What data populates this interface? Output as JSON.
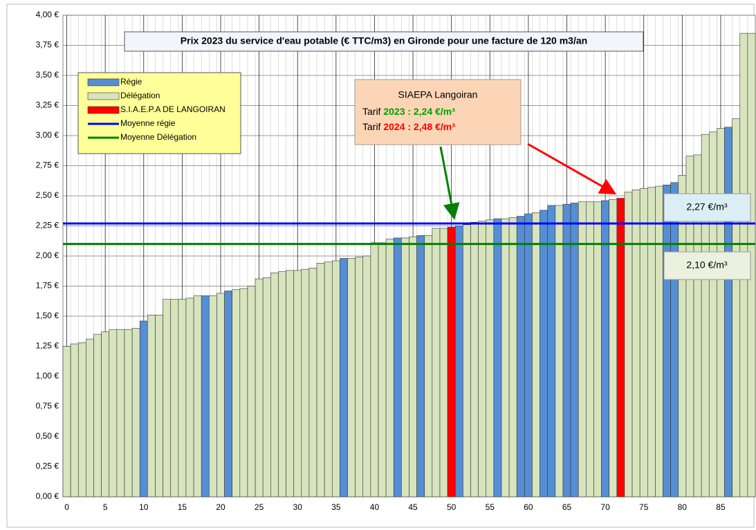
{
  "chart_data": {
    "type": "bar",
    "title": "Prix 2023 du service d'eau potable  (€ TTC/m3) en Gironde pour une facture de 120 m3/an",
    "values": [
      1.25,
      1.27,
      1.28,
      1.31,
      1.35,
      1.37,
      1.39,
      1.39,
      1.39,
      1.4,
      1.46,
      1.51,
      1.51,
      1.64,
      1.64,
      1.64,
      1.65,
      1.67,
      1.67,
      1.67,
      1.69,
      1.71,
      1.72,
      1.73,
      1.75,
      1.81,
      1.82,
      1.86,
      1.87,
      1.88,
      1.88,
      1.89,
      1.9,
      1.94,
      1.95,
      1.96,
      1.98,
      1.98,
      1.99,
      2.0,
      2.11,
      2.11,
      2.14,
      2.15,
      2.15,
      2.16,
      2.17,
      2.17,
      2.23,
      2.23,
      2.24,
      2.25,
      2.26,
      2.28,
      2.29,
      2.3,
      2.31,
      2.31,
      2.32,
      2.33,
      2.35,
      2.36,
      2.38,
      2.42,
      2.42,
      2.43,
      2.44,
      2.45,
      2.45,
      2.45,
      2.46,
      2.47,
      2.48,
      2.53,
      2.55,
      2.56,
      2.57,
      2.58,
      2.59,
      2.61,
      2.67,
      2.83,
      2.84,
      3.01,
      3.03,
      3.06,
      3.07,
      3.14,
      3.85,
      3.85
    ],
    "bar_group": [
      1,
      1,
      1,
      1,
      1,
      1,
      1,
      1,
      1,
      1,
      0,
      1,
      1,
      1,
      1,
      1,
      1,
      1,
      0,
      1,
      1,
      0,
      1,
      1,
      1,
      1,
      1,
      1,
      1,
      1,
      1,
      1,
      1,
      1,
      1,
      1,
      0,
      1,
      1,
      1,
      1,
      1,
      1,
      0,
      1,
      1,
      0,
      1,
      1,
      1,
      2,
      0,
      1,
      1,
      1,
      1,
      0,
      1,
      1,
      0,
      0,
      1,
      0,
      0,
      1,
      0,
      0,
      1,
      1,
      1,
      0,
      1,
      2,
      1,
      1,
      1,
      1,
      1,
      0,
      0,
      1,
      1,
      1,
      1,
      1,
      1,
      0,
      1,
      1,
      1
    ],
    "legend": [
      {
        "name": "Régie",
        "color": "#558ed5"
      },
      {
        "name": "Délégation",
        "color": "#d7e4bd"
      },
      {
        "name": "S.I.A.E.P.A DE LANGOIRAN",
        "color": "#ff0000"
      }
    ],
    "lines": [
      {
        "name": "Moyenne régie",
        "color": "#0000ff",
        "value": 2.27,
        "value_label": "2,27 €/m³"
      },
      {
        "name": "Moyenne Délégation",
        "color": "#008000",
        "value": 2.1,
        "value_label": "2,10 €/m³"
      }
    ],
    "annotation": {
      "title": "SIAEPA Langoiran",
      "prefix": "Tarif ",
      "lines": [
        {
          "text": "2023 : 2,24 €/m³",
          "color": "#00a000"
        },
        {
          "text": "2024 : 2,48 €/m³",
          "color": "#ff0000"
        }
      ]
    },
    "ylim": [
      0,
      4
    ],
    "yticks": [
      {
        "value": 0,
        "label": "0,00 €"
      },
      {
        "value": 0.25,
        "label": "0,25 €"
      },
      {
        "value": 0.5,
        "label": "0,50 €"
      },
      {
        "value": 0.75,
        "label": "0,75 €"
      },
      {
        "value": 1,
        "label": "1,00 €"
      },
      {
        "value": 1.25,
        "label": "1,25 €"
      },
      {
        "value": 1.5,
        "label": "1,50 €"
      },
      {
        "value": 1.75,
        "label": "1,75 €"
      },
      {
        "value": 2,
        "label": "2,00 €"
      },
      {
        "value": 2.25,
        "label": "2,25 €"
      },
      {
        "value": 2.5,
        "label": "2,50 €"
      },
      {
        "value": 2.75,
        "label": "2,75 €"
      },
      {
        "value": 3,
        "label": "3,00 €"
      },
      {
        "value": 3.25,
        "label": "3,25 €"
      },
      {
        "value": 3.5,
        "label": "3,50 €"
      },
      {
        "value": 3.75,
        "label": "3,75 €"
      },
      {
        "value": 4,
        "label": "4,00 €"
      }
    ],
    "xticks": [
      0,
      5,
      10,
      15,
      20,
      25,
      30,
      35,
      40,
      45,
      50,
      55,
      60,
      65,
      70,
      75,
      80,
      85
    ],
    "grid": true
  }
}
